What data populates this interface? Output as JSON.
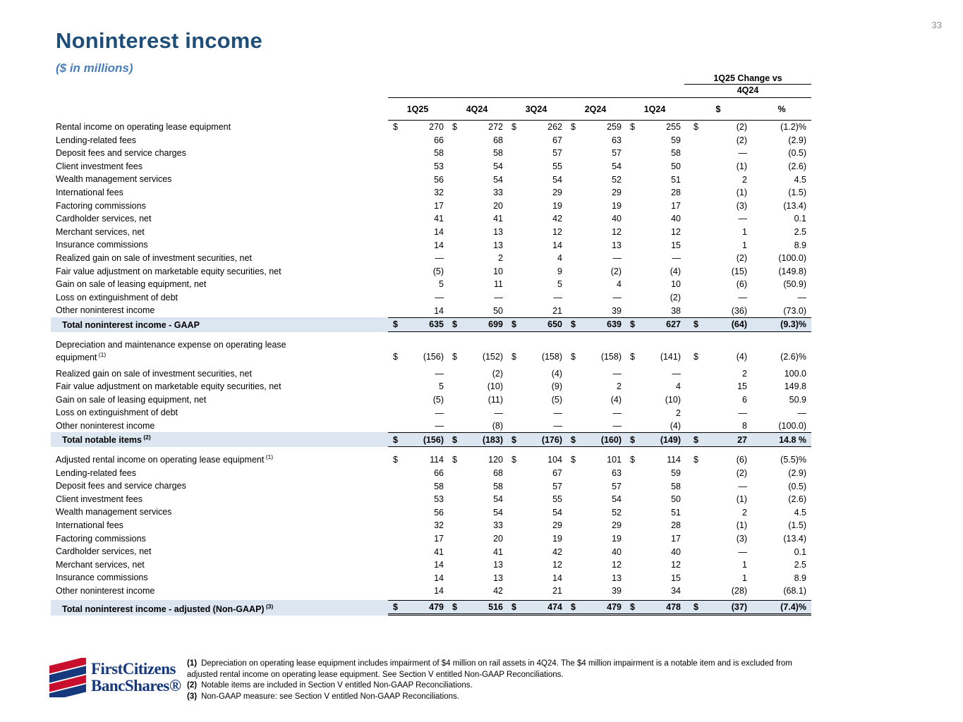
{
  "page": {
    "number": "33",
    "title": "Noninterest income",
    "subtitle": "($ in millions)"
  },
  "table": {
    "change_header": {
      "line1": "1Q25 Change vs",
      "line2": "4Q24"
    },
    "quarter_columns": [
      "1Q25",
      "4Q24",
      "3Q24",
      "2Q24",
      "1Q24"
    ],
    "change_columns": [
      "$",
      "%"
    ],
    "highlight_color": "#dce6f1",
    "sections": [
      {
        "rows": [
          {
            "label": "Rental income on operating lease equipment",
            "dollar": true,
            "values": [
              "270",
              "272",
              "262",
              "259",
              "255"
            ],
            "change": "(2)",
            "pct": "(1.2)%"
          },
          {
            "label": "Lending-related fees",
            "values": [
              "66",
              "68",
              "67",
              "63",
              "59"
            ],
            "change": "(2)",
            "pct": "(2.9)"
          },
          {
            "label": "Deposit fees and service charges",
            "values": [
              "58",
              "58",
              "57",
              "57",
              "58"
            ],
            "change": "—",
            "pct": "(0.5)"
          },
          {
            "label": "Client investment fees",
            "values": [
              "53",
              "54",
              "55",
              "54",
              "50"
            ],
            "change": "(1)",
            "pct": "(2.6)"
          },
          {
            "label": "Wealth management services",
            "values": [
              "56",
              "54",
              "54",
              "52",
              "51"
            ],
            "change": "2",
            "pct": "4.5"
          },
          {
            "label": "International fees",
            "values": [
              "32",
              "33",
              "29",
              "29",
              "28"
            ],
            "change": "(1)",
            "pct": "(1.5)"
          },
          {
            "label": "Factoring commissions",
            "values": [
              "17",
              "20",
              "19",
              "19",
              "17"
            ],
            "change": "(3)",
            "pct": "(13.4)"
          },
          {
            "label": "Cardholder services, net",
            "values": [
              "41",
              "41",
              "42",
              "40",
              "40"
            ],
            "change": "—",
            "pct": "0.1"
          },
          {
            "label": "Merchant services, net",
            "values": [
              "14",
              "13",
              "12",
              "12",
              "12"
            ],
            "change": "1",
            "pct": "2.5"
          },
          {
            "label": "Insurance commissions",
            "values": [
              "14",
              "13",
              "14",
              "13",
              "15"
            ],
            "change": "1",
            "pct": "8.9"
          },
          {
            "label": "Realized gain on sale of investment securities, net",
            "values": [
              "—",
              "2",
              "4",
              "—",
              "—"
            ],
            "change": "(2)",
            "pct": "(100.0)"
          },
          {
            "label": "Fair value adjustment on marketable equity securities, net",
            "values": [
              "(5)",
              "10",
              "9",
              "(2)",
              "(4)"
            ],
            "change": "(15)",
            "pct": "(149.8)"
          },
          {
            "label": "Gain on sale of leasing equipment, net",
            "values": [
              "5",
              "11",
              "5",
              "4",
              "10"
            ],
            "change": "(6)",
            "pct": "(50.9)"
          },
          {
            "label": "Loss on extinguishment of debt",
            "values": [
              "—",
              "—",
              "—",
              "—",
              "(2)"
            ],
            "change": "—",
            "pct": "—"
          },
          {
            "label": "Other noninterest income",
            "values": [
              "14",
              "50",
              "21",
              "39",
              "38"
            ],
            "change": "(36)",
            "pct": "(73.0)"
          }
        ],
        "total": {
          "label": "Total noninterest income - GAAP",
          "dollar": true,
          "values": [
            "635",
            "699",
            "650",
            "639",
            "627"
          ],
          "change": "(64)",
          "pct": "(9.3)%"
        }
      },
      {
        "rows": [
          {
            "label": "Depreciation and maintenance expense on operating lease",
            "label2": "equipment",
            "sup": "(1)",
            "dollar": true,
            "values": [
              "(156)",
              "(152)",
              "(158)",
              "(158)",
              "(141)"
            ],
            "change": "(4)",
            "pct": "(2.6)%"
          },
          {
            "label": "Realized gain on sale of investment securities, net",
            "values": [
              "—",
              "(2)",
              "(4)",
              "—",
              "—"
            ],
            "change": "2",
            "pct": "100.0"
          },
          {
            "label": "Fair value adjustment on marketable equity securities, net",
            "values": [
              "5",
              "(10)",
              "(9)",
              "2",
              "4"
            ],
            "change": "15",
            "pct": "149.8"
          },
          {
            "label": "Gain on sale of leasing equipment, net",
            "values": [
              "(5)",
              "(11)",
              "(5)",
              "(4)",
              "(10)"
            ],
            "change": "6",
            "pct": "50.9"
          },
          {
            "label": "Loss on extinguishment of debt",
            "values": [
              "—",
              "—",
              "—",
              "—",
              "2"
            ],
            "change": "—",
            "pct": "—"
          },
          {
            "label": "Other noninterest income",
            "values": [
              "—",
              "(8)",
              "—",
              "—",
              "(4)"
            ],
            "change": "8",
            "pct": "(100.0)"
          }
        ],
        "total": {
          "label": "Total notable items",
          "sup": "(2)",
          "dollar": true,
          "values": [
            "(156)",
            "(183)",
            "(176)",
            "(160)",
            "(149)"
          ],
          "change": "27",
          "pct": "14.8 %"
        }
      },
      {
        "rows": [
          {
            "label": "Adjusted rental income on operating lease equipment",
            "sup": "(1)",
            "dollar": true,
            "values": [
              "114",
              "120",
              "104",
              "101",
              "114"
            ],
            "change": "(6)",
            "pct": "(5.5)%"
          },
          {
            "label": "Lending-related fees",
            "values": [
              "66",
              "68",
              "67",
              "63",
              "59"
            ],
            "change": "(2)",
            "pct": "(2.9)"
          },
          {
            "label": "Deposit fees and service charges",
            "values": [
              "58",
              "58",
              "57",
              "57",
              "58"
            ],
            "change": "—",
            "pct": "(0.5)"
          },
          {
            "label": "Client investment fees",
            "values": [
              "53",
              "54",
              "55",
              "54",
              "50"
            ],
            "change": "(1)",
            "pct": "(2.6)"
          },
          {
            "label": "Wealth management services",
            "values": [
              "56",
              "54",
              "54",
              "52",
              "51"
            ],
            "change": "2",
            "pct": "4.5"
          },
          {
            "label": "International fees",
            "values": [
              "32",
              "33",
              "29",
              "29",
              "28"
            ],
            "change": "(1)",
            "pct": "(1.5)"
          },
          {
            "label": "Factoring commissions",
            "values": [
              "17",
              "20",
              "19",
              "19",
              "17"
            ],
            "change": "(3)",
            "pct": "(13.4)"
          },
          {
            "label": "Cardholder services, net",
            "values": [
              "41",
              "41",
              "42",
              "40",
              "40"
            ],
            "change": "—",
            "pct": "0.1"
          },
          {
            "label": "Merchant services, net",
            "values": [
              "14",
              "13",
              "12",
              "12",
              "12"
            ],
            "change": "1",
            "pct": "2.5"
          },
          {
            "label": "Insurance commissions",
            "values": [
              "14",
              "13",
              "14",
              "13",
              "15"
            ],
            "change": "1",
            "pct": "8.9"
          },
          {
            "label": "Other noninterest income",
            "values": [
              "14",
              "42",
              "21",
              "39",
              "34"
            ],
            "change": "(28)",
            "pct": "(68.1)"
          }
        ],
        "total": {
          "label": "Total noninterest income - adjusted (Non-GAAP)",
          "sup": "(3)",
          "dollar": true,
          "values": [
            "479",
            "516",
            "474",
            "479",
            "478"
          ],
          "change": "(37)",
          "pct": "(7.4)%",
          "final": true
        }
      }
    ]
  },
  "footnotes": [
    {
      "num": "(1)",
      "text": "Depreciation on operating lease equipment includes impairment of $4 million on rail assets in 4Q24. The $4 million impairment is a notable item and is excluded from adjusted rental income on operating lease equipment. See Section V entitled Non-GAAP Reconciliations."
    },
    {
      "num": "(2)",
      "text": "Notable items are included in Section V entitled Non-GAAP Reconciliations."
    },
    {
      "num": "(3)",
      "text": "Non-GAAP measure: see Section V entitled Non-GAAP Reconciliations."
    }
  ],
  "logo": {
    "line1": "FirstCitizens",
    "line2": "BancShares®",
    "blue": "#16387c",
    "red": "#c8102e"
  }
}
